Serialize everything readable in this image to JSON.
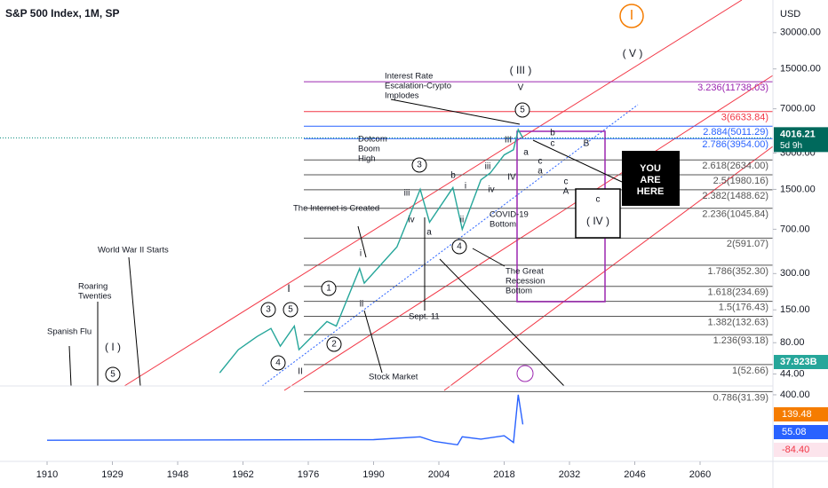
{
  "chart_data": {
    "type": "line",
    "title": "S&P 500 Index, 1M, SP",
    "currency": "USD",
    "log_scale": true,
    "ylim": [
      35,
      56000
    ],
    "yticks": [
      {
        "value": 30000,
        "label": "30000.00"
      },
      {
        "value": 15000,
        "label": "15000.00"
      },
      {
        "value": 7000,
        "label": "7000.00"
      },
      {
        "value": 3000,
        "label": "3000.00"
      },
      {
        "value": 1500,
        "label": "1500.00"
      },
      {
        "value": 700,
        "label": "700.00"
      },
      {
        "value": 300,
        "label": "300.00"
      },
      {
        "value": 150,
        "label": "150.00"
      },
      {
        "value": 80,
        "label": "80.00"
      },
      {
        "value": 44,
        "label": "44.00"
      }
    ],
    "xticks": [
      1910,
      1929,
      1948,
      1962,
      1976,
      1990,
      2004,
      2018,
      2032,
      2046,
      2060
    ],
    "series": [
      {
        "color": "#26a69a",
        "x": [
          1957,
          1961,
          1965,
          1968,
          1970,
          1973,
          1974,
          1980,
          1982,
          1987,
          1988,
          1995,
          2000,
          2002,
          2007,
          2009,
          2013,
          2015,
          2018,
          2020,
          2021,
          2022
        ],
        "values": [
          45,
          70,
          90,
          105,
          75,
          110,
          70,
          120,
          110,
          330,
          250,
          500,
          1500,
          800,
          1550,
          700,
          1800,
          2050,
          2900,
          3200,
          4700,
          4016.21
        ]
      }
    ],
    "last_price": {
      "value": 4016.21,
      "label": "4016.21"
    },
    "countdown": "5d 9h",
    "volume_badge": "37.923B",
    "fib_levels": [
      {
        "value": 11738.03,
        "label": "3.236(11738.03)",
        "color": "#9c27b0"
      },
      {
        "value": 6633.84,
        "label": "3(6633.84)",
        "color": "#f23645"
      },
      {
        "value": 5011.29,
        "label": "2.884(5011.29)",
        "color": "#2962ff"
      },
      {
        "value": 3954.0,
        "label": "2.786(3954.00)",
        "color": "#2962ff"
      },
      {
        "value": 2634.0,
        "label": "2.618(2634.00)",
        "color": "#555555"
      },
      {
        "value": 1980.16,
        "label": "2.5(1980.16)",
        "color": "#555555"
      },
      {
        "value": 1488.62,
        "label": "2.382(1488.62)",
        "color": "#555555"
      },
      {
        "value": 1045.84,
        "label": "2.236(1045.84)",
        "color": "#555555"
      },
      {
        "value": 591.07,
        "label": "2(591.07)",
        "color": "#555555"
      },
      {
        "value": 352.3,
        "label": "1.786(352.30)",
        "color": "#555555"
      },
      {
        "value": 234.69,
        "label": "1.618(234.69)",
        "color": "#555555"
      },
      {
        "value": 176.43,
        "label": "1.5(176.43)",
        "color": "#555555"
      },
      {
        "value": 132.63,
        "label": "1.382(132.63)",
        "color": "#555555"
      },
      {
        "value": 93.18,
        "label": "1.236(93.18)",
        "color": "#555555"
      },
      {
        "value": 52.66,
        "label": "1(52.66)",
        "color": "#555555"
      },
      {
        "value": 31.39,
        "label": "0.786(31.39)",
        "color": "#555555"
      }
    ],
    "annotations": [
      "Interest Rate",
      "Escalation-Crypto",
      "Implodes",
      "Dotcom",
      "Boom",
      "High",
      "The Internet is Created",
      "World War II Starts",
      "Roaring",
      "Twenties",
      "Spanish Flu",
      "Sept. 11",
      "COVID-19",
      "Bottom",
      "The Great",
      "Recession",
      "Bottom",
      "Stock Market",
      "YOU",
      "ARE",
      "HERE"
    ],
    "wave_labels": [
      "( III )",
      "V",
      "( V )",
      "( I )",
      "I",
      "( IV )",
      "I",
      "5",
      "3",
      "4",
      "1",
      "3",
      "5",
      "2",
      "4",
      "5",
      "iii",
      "iv",
      "i",
      "ii",
      "b",
      "i",
      "iv",
      "iii",
      "ii",
      "a",
      "b",
      "c",
      "a",
      "c",
      "a",
      "IV",
      "III",
      "c",
      "A",
      "B",
      "c",
      "II"
    ],
    "indicator": {
      "ylim": [
        -186,
        462
      ],
      "yticks": [
        {
          "value": 400,
          "label": "400.00"
        }
      ],
      "series": [
        {
          "color": "#2962ff",
          "x": [
            1910,
            1990,
            2000,
            2003,
            2008,
            2009,
            2013,
            2018,
            2020,
            2021,
            2022
          ],
          "values": [
            0,
            5,
            30,
            -10,
            -40,
            30,
            10,
            40,
            -20,
            400,
            139.48
          ]
        }
      ],
      "badges": [
        "139.48",
        "55.08",
        "-84.40"
      ]
    }
  }
}
